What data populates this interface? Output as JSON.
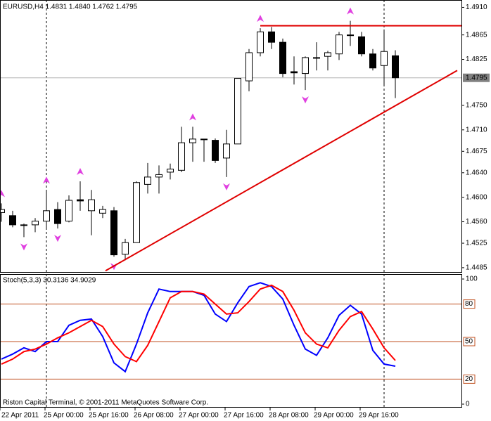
{
  "chart_data": [
    {
      "type": "candlestick",
      "title": "EURUSD,H4  1.4831 1.4840 1.4762 1.4795",
      "open": [
        1.4575,
        1.457,
        1.4555,
        1.4555,
        1.4561,
        1.458,
        1.4561,
        1.4596,
        1.4578,
        1.4574,
        1.4578,
        1.4507,
        1.4526,
        1.4621,
        1.4633,
        1.4641,
        1.4644,
        1.4689,
        1.4695,
        1.4693,
        1.4664,
        1.4687,
        1.479,
        1.4836,
        1.487,
        1.4853,
        1.4805,
        1.4802,
        1.4828,
        1.483,
        1.4834,
        1.4865,
        1.4862,
        1.4834,
        1.4815,
        1.4831
      ],
      "high": [
        1.459,
        1.4578,
        1.4557,
        1.4566,
        1.4612,
        1.4592,
        1.4603,
        1.4626,
        1.4612,
        1.4586,
        1.4584,
        1.4532,
        1.4626,
        1.4656,
        1.4652,
        1.4655,
        1.4715,
        1.4715,
        1.4695,
        1.4696,
        1.471,
        1.4794,
        1.4842,
        1.4876,
        1.4878,
        1.4859,
        1.483,
        1.483,
        1.4853,
        1.4839,
        1.487,
        1.4888,
        1.487,
        1.4842,
        1.4874,
        1.484
      ],
      "low": [
        1.456,
        1.4551,
        1.4535,
        1.4543,
        1.4549,
        1.4549,
        1.4559,
        1.4578,
        1.4538,
        1.4566,
        1.4503,
        1.4497,
        1.4526,
        1.4606,
        1.4606,
        1.4629,
        1.4641,
        1.4658,
        1.4658,
        1.4656,
        1.4633,
        1.4687,
        1.4773,
        1.483,
        1.4842,
        1.4796,
        1.4784,
        1.4775,
        1.4807,
        1.4807,
        1.4824,
        1.4847,
        1.483,
        1.4807,
        1.4784,
        1.4762
      ],
      "close": [
        1.458,
        1.4555,
        1.4555,
        1.4561,
        1.4578,
        1.4557,
        1.4595,
        1.4594,
        1.4596,
        1.458,
        1.4506,
        1.4526,
        1.4624,
        1.4633,
        1.4637,
        1.4646,
        1.4689,
        1.4695,
        1.4694,
        1.466,
        1.4687,
        1.4794,
        1.4836,
        1.487,
        1.4853,
        1.4802,
        1.4803,
        1.4828,
        1.4828,
        1.4836,
        1.4865,
        1.4864,
        1.4834,
        1.4811,
        1.4838,
        1.4795
      ],
      "ylim": [
        1.4478,
        1.4922
      ],
      "yticks": [
        {
          "value": 1.491,
          "label": "1.4910"
        },
        {
          "value": 1.4865,
          "label": "1.4865"
        },
        {
          "value": 1.4825,
          "label": "1.4825"
        },
        {
          "value": 1.475,
          "label": "1.4750"
        },
        {
          "value": 1.471,
          "label": "1.4710"
        },
        {
          "value": 1.4675,
          "label": "1.4675"
        },
        {
          "value": 1.464,
          "label": "1.4640"
        },
        {
          "value": 1.46,
          "label": "1.4600"
        },
        {
          "value": 1.456,
          "label": "1.4560"
        },
        {
          "value": 1.4525,
          "label": "1.4525"
        },
        {
          "value": 1.4485,
          "label": "1.4485"
        }
      ],
      "current_price": {
        "value": 1.4795,
        "label": "1.4795"
      },
      "xticks": [
        {
          "value": 0,
          "label": "22 Apr 2011"
        },
        {
          "value": 4,
          "label": "25 Apr 00:00"
        },
        {
          "value": 8,
          "label": "25 Apr 16:00"
        },
        {
          "value": 12,
          "label": "26 Apr 08:00"
        },
        {
          "value": 16,
          "label": "27 Apr 00:00"
        },
        {
          "value": 20,
          "label": "27 Apr 16:00"
        },
        {
          "value": 24,
          "label": "28 Apr 08:00"
        },
        {
          "value": 28,
          "label": "29 Apr 00:00"
        },
        {
          "value": 32,
          "label": "29 Apr 16:00"
        }
      ],
      "fractals_up": [
        0,
        4,
        7,
        17,
        23,
        31
      ],
      "fractals_down": [
        2,
        5,
        10,
        20,
        27
      ],
      "fractal_color": "#e040e0",
      "hline": {
        "price": 1.488,
        "start": 23,
        "color": "#e00000"
      },
      "trendline": {
        "x": [
          9.25,
          40.5
        ],
        "y": [
          1.448,
          1.4807
        ],
        "color": "#e00000"
      },
      "separators": [
        4,
        34
      ]
    },
    {
      "type": "line",
      "title": "Stoch(5,3,3) 30.3136 34.9029",
      "series": [
        {
          "color": "#0000ff",
          "values": [
            36,
            40,
            45,
            42,
            50,
            50,
            63,
            67,
            68,
            54,
            33,
            26,
            48,
            73,
            92,
            90,
            90,
            90,
            87,
            72,
            66,
            81,
            94,
            97,
            94,
            84,
            63,
            44,
            39,
            53,
            71,
            79,
            72,
            43,
            32,
            30.3136
          ]
        },
        {
          "color": "#ff0000",
          "values": [
            32,
            36,
            42,
            44,
            48,
            53,
            57,
            62,
            67,
            62,
            48,
            38,
            34,
            47,
            66,
            85,
            90,
            90,
            88,
            80,
            72,
            73,
            82,
            92,
            95,
            90,
            75,
            57,
            48,
            45,
            59,
            70,
            74,
            60,
            45,
            34.9029
          ]
        }
      ],
      "ylim": [
        0,
        100
      ],
      "yticks": [
        100,
        0
      ],
      "levels": [
        80,
        50,
        20
      ],
      "level_color": "#c05020",
      "annotation": "Riston Capital Terminal, © 2001-2011 MetaQuotes Software Corp."
    }
  ]
}
